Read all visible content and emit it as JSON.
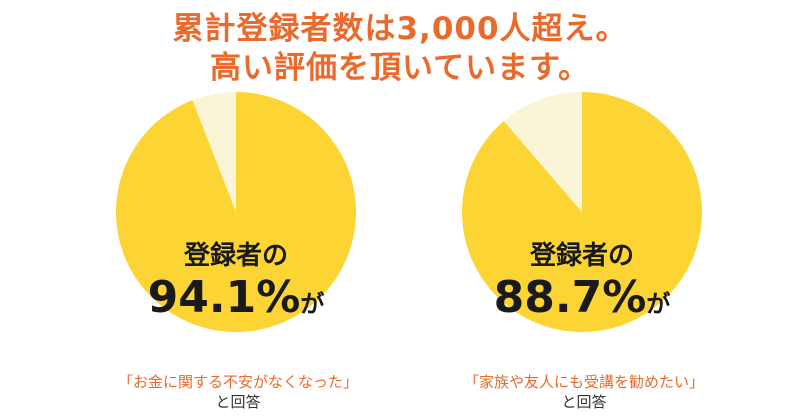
{
  "headline": {
    "line1": "累計登録者数は3,000人超え。",
    "line2": "高い評価を頂いています。"
  },
  "colors": {
    "accent": "#ea6a2c",
    "pie_main": "#fcd535",
    "pie_rest": "#fbf5d8",
    "text": "#1a1a1a"
  },
  "chart_data": [
    {
      "type": "pie",
      "center_line1": "登録者の",
      "value_label": "94.1%",
      "value_suffix": "が",
      "values": [
        94.1,
        5.9
      ],
      "caption_quote": "「お金に関する不安がなくなった」",
      "caption_answer": "と回答"
    },
    {
      "type": "pie",
      "center_line1": "登録者の",
      "value_label": "88.7%",
      "value_suffix": "が",
      "values": [
        88.7,
        11.3
      ],
      "caption_quote": "「家族や友人にも受講を勧めたい」",
      "caption_answer": "と回答"
    }
  ]
}
